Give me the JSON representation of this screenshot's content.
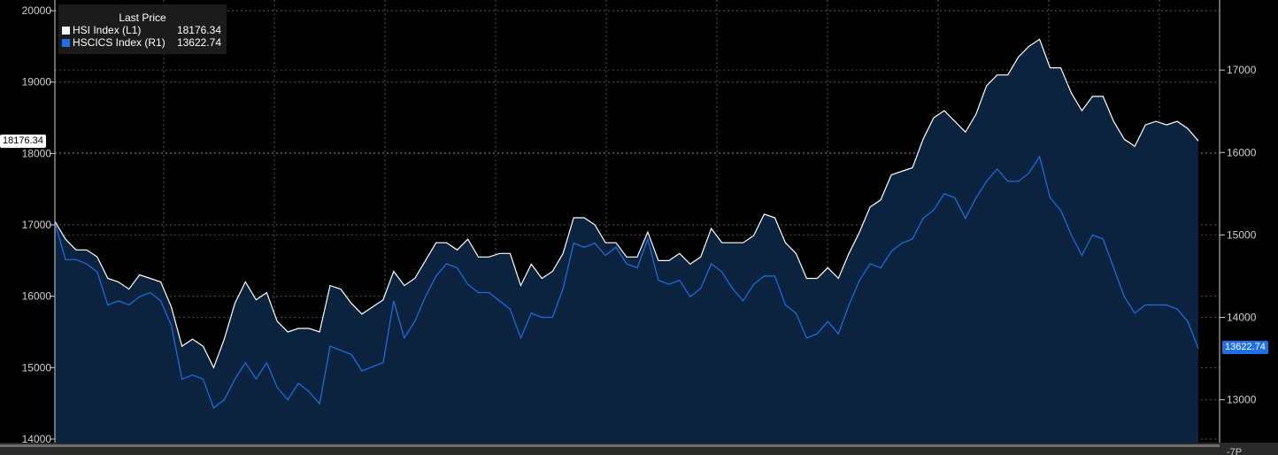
{
  "chart_data": {
    "type": "area",
    "grid": true,
    "legend_placement": "top-left",
    "legend_title": "Last Price",
    "left_axis": {
      "ticks": [
        14000,
        15000,
        16000,
        17000,
        18000,
        19000,
        20000
      ],
      "range": [
        13950,
        20150
      ]
    },
    "right_axis": {
      "ticks": [
        13000,
        14000,
        15000,
        16000,
        17000
      ],
      "range": [
        12480,
        17850
      ],
      "partial_bottom_label": "-7P"
    },
    "series": [
      {
        "name": "HSI Index (L1)",
        "last_value": "18176.34",
        "axis": "left",
        "color": "#ffffff",
        "values": [
          17050,
          16800,
          16650,
          16650,
          16550,
          16250,
          16200,
          16100,
          16300,
          16250,
          16200,
          15850,
          15300,
          15400,
          15300,
          15000,
          15400,
          15900,
          16200,
          15950,
          16050,
          15650,
          15500,
          15550,
          15550,
          15500,
          16150,
          16100,
          15900,
          15750,
          15850,
          15950,
          16350,
          16150,
          16250,
          16500,
          16750,
          16750,
          16650,
          16800,
          16550,
          16550,
          16600,
          16600,
          16150,
          16450,
          16250,
          16350,
          16600,
          17100,
          17100,
          17000,
          16750,
          16750,
          16550,
          16550,
          16900,
          16500,
          16500,
          16600,
          16450,
          16550,
          16950,
          16750,
          16750,
          16750,
          16850,
          17150,
          17100,
          16750,
          16600,
          16250,
          16250,
          16400,
          16250,
          16600,
          16900,
          17250,
          17350,
          17700,
          17750,
          17800,
          18200,
          18500,
          18600,
          18450,
          18300,
          18550,
          18950,
          19100,
          19100,
          19350,
          19500,
          19600,
          19200,
          19200,
          18850,
          18600,
          18800,
          18800,
          18450,
          18200,
          18100,
          18400,
          18450,
          18400,
          18450,
          18350,
          18176.34
        ]
      },
      {
        "name": "HSCICS Index (R1)",
        "last_value": "13622.74",
        "axis": "right",
        "color": "#1f6fe6",
        "values": [
          15150,
          14700,
          14700,
          14650,
          14550,
          14150,
          14200,
          14150,
          14250,
          14300,
          14200,
          13900,
          13250,
          13300,
          13250,
          12900,
          13000,
          13250,
          13450,
          13250,
          13450,
          13150,
          13000,
          13200,
          13100,
          12950,
          13650,
          13600,
          13550,
          13350,
          13400,
          13450,
          14200,
          13750,
          13950,
          14250,
          14500,
          14650,
          14600,
          14400,
          14300,
          14300,
          14200,
          14100,
          13750,
          14050,
          14000,
          14000,
          14350,
          14900,
          14850,
          14900,
          14750,
          14850,
          14650,
          14600,
          14950,
          14450,
          14400,
          14450,
          14250,
          14350,
          14650,
          14550,
          14350,
          14200,
          14400,
          14500,
          14500,
          14150,
          14050,
          13750,
          13800,
          13950,
          13800,
          14150,
          14450,
          14650,
          14600,
          14800,
          14900,
          14950,
          15200,
          15300,
          15500,
          15450,
          15200,
          15450,
          15650,
          15800,
          15650,
          15650,
          15750,
          15950,
          15450,
          15300,
          15000,
          14750,
          15000,
          14950,
          14600,
          14250,
          14050,
          14150,
          14150,
          14150,
          14100,
          13950,
          13622.74
        ]
      }
    ]
  }
}
